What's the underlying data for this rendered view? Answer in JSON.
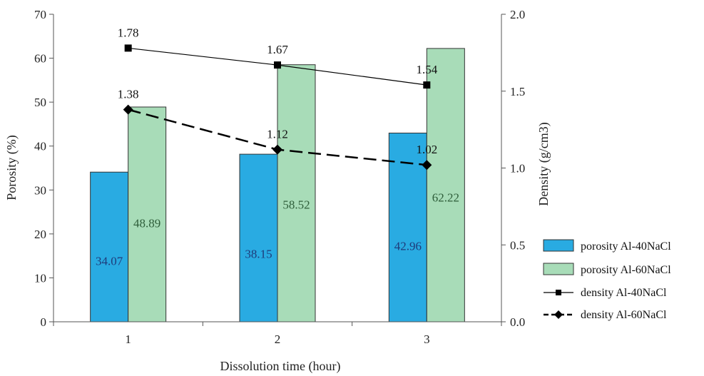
{
  "chart_data": {
    "type": "bar",
    "categories": [
      "1",
      "2",
      "3"
    ],
    "xlabel": "Dissolution time (hour)",
    "ylabel": "Porosity (%)",
    "y2label": "Density (g/cm3)",
    "ylim": [
      0,
      70
    ],
    "y2lim": [
      0.0,
      2.0
    ],
    "yticks": [
      "0",
      "10",
      "20",
      "30",
      "40",
      "50",
      "60",
      "70"
    ],
    "y2ticks": [
      "0.0",
      "0.5",
      "1.0",
      "1.5",
      "2.0"
    ],
    "legend_position": "right",
    "series": [
      {
        "name": "porosity Al-40NaCl",
        "kind": "bar",
        "axis": "left",
        "values": [
          34.07,
          38.15,
          42.96
        ],
        "labels": [
          "34.07",
          "38.15",
          "42.96"
        ],
        "color": "#29abe2",
        "label_color": "#1f3b7a"
      },
      {
        "name": "porosity Al-60NaCl",
        "kind": "bar",
        "axis": "left",
        "values": [
          48.89,
          58.52,
          62.22
        ],
        "labels": [
          "48.89",
          "58.52",
          "62.22"
        ],
        "color": "#a8dcb8",
        "label_color": "#2f5e3a"
      },
      {
        "name": "density Al-40NaCl",
        "kind": "line",
        "axis": "right",
        "values": [
          1.78,
          1.67,
          1.54
        ],
        "labels": [
          "1.78",
          "1.67",
          "1.54"
        ],
        "color": "#000000",
        "marker": "square",
        "dash": "solid"
      },
      {
        "name": "density Al-60NaCl",
        "kind": "line",
        "axis": "right",
        "values": [
          1.38,
          1.12,
          1.02
        ],
        "labels": [
          "1.38",
          "1.12",
          "1.02"
        ],
        "color": "#000000",
        "marker": "diamond",
        "dash": "dashed"
      }
    ]
  }
}
